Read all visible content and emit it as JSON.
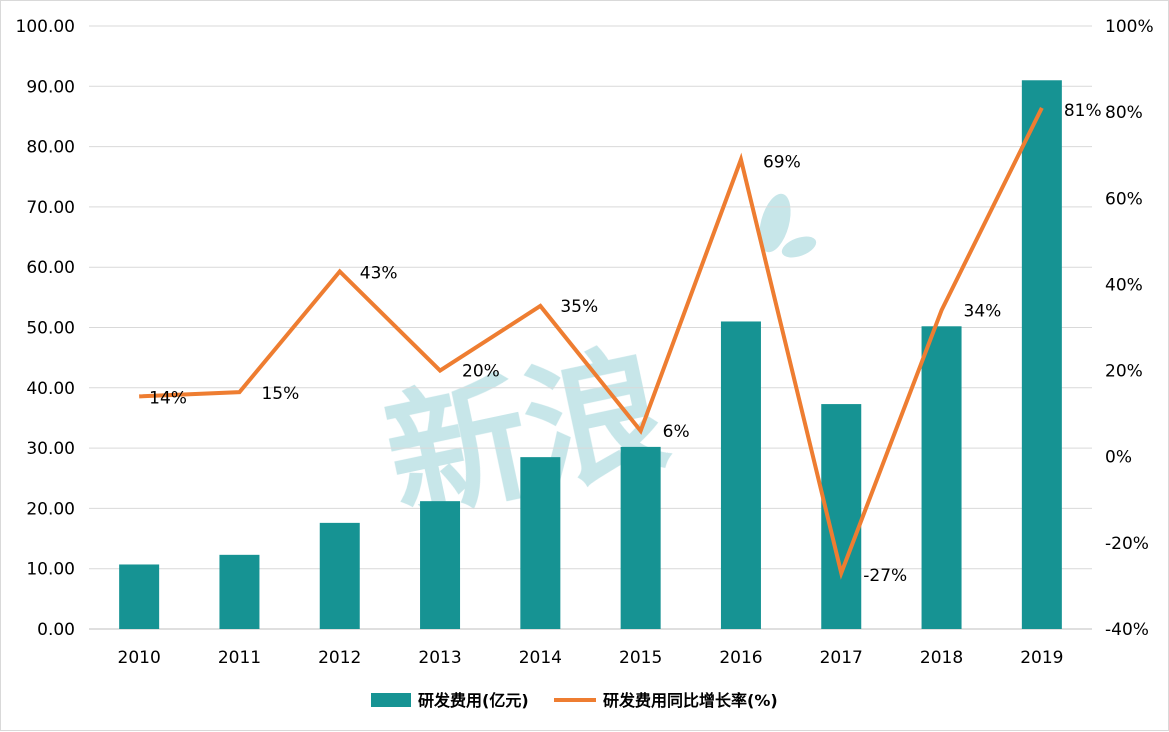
{
  "chart_data": {
    "type": "bar+line",
    "categories": [
      "2010",
      "2011",
      "2012",
      "2013",
      "2014",
      "2015",
      "2016",
      "2017",
      "2018",
      "2019"
    ],
    "series": [
      {
        "name": "研发费用(亿元)",
        "type": "bar",
        "axis": "left",
        "values": [
          10.7,
          12.3,
          17.6,
          21.2,
          28.5,
          30.2,
          51.0,
          37.3,
          50.2,
          91.0
        ]
      },
      {
        "name": "研发费用同比增长率(%)",
        "type": "line",
        "axis": "right",
        "values": [
          14,
          15,
          43,
          20,
          35,
          6,
          69,
          -27,
          34,
          81
        ],
        "labels": [
          "14%",
          "15%",
          "43%",
          "20%",
          "35%",
          "6%",
          "69%",
          "-27%",
          "34%",
          "81%"
        ]
      }
    ],
    "y_left": {
      "ylim": [
        0,
        100
      ],
      "ticks": [
        "0.00",
        "10.00",
        "20.00",
        "30.00",
        "40.00",
        "50.00",
        "60.00",
        "70.00",
        "80.00",
        "90.00",
        "100.00"
      ]
    },
    "y_right": {
      "ylim": [
        -40,
        100
      ],
      "ticks": [
        "-40%",
        "-20%",
        "0%",
        "20%",
        "40%",
        "60%",
        "80%",
        "100%"
      ]
    },
    "grid": true,
    "legend": "bottom",
    "colors": {
      "bar": "#169393",
      "line": "#ee7d31"
    }
  },
  "watermark": {
    "text": "新浪"
  }
}
